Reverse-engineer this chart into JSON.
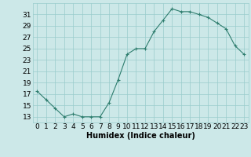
{
  "x": [
    0,
    1,
    2,
    3,
    4,
    5,
    6,
    7,
    8,
    9,
    10,
    11,
    12,
    13,
    14,
    15,
    16,
    17,
    18,
    19,
    20,
    21,
    22,
    23
  ],
  "y": [
    17.5,
    16.0,
    14.5,
    13.0,
    13.5,
    13.0,
    13.0,
    13.0,
    15.5,
    19.5,
    24.0,
    25.0,
    25.0,
    28.0,
    30.0,
    32.0,
    31.5,
    31.5,
    31.0,
    30.5,
    29.5,
    28.5,
    25.5,
    24.0
  ],
  "xlabel": "Humidex (Indice chaleur)",
  "xlim": [
    -0.5,
    23.5
  ],
  "ylim": [
    12,
    33
  ],
  "yticks": [
    13,
    15,
    17,
    19,
    21,
    23,
    25,
    27,
    29,
    31
  ],
  "xticks": [
    0,
    1,
    2,
    3,
    4,
    5,
    6,
    7,
    8,
    9,
    10,
    11,
    12,
    13,
    14,
    15,
    16,
    17,
    18,
    19,
    20,
    21,
    22,
    23
  ],
  "line_color": "#2e7d6e",
  "marker_color": "#2e7d6e",
  "bg_color": "#cce8e8",
  "grid_color": "#99cccc",
  "xlabel_fontsize": 7,
  "tick_fontsize": 6.5
}
